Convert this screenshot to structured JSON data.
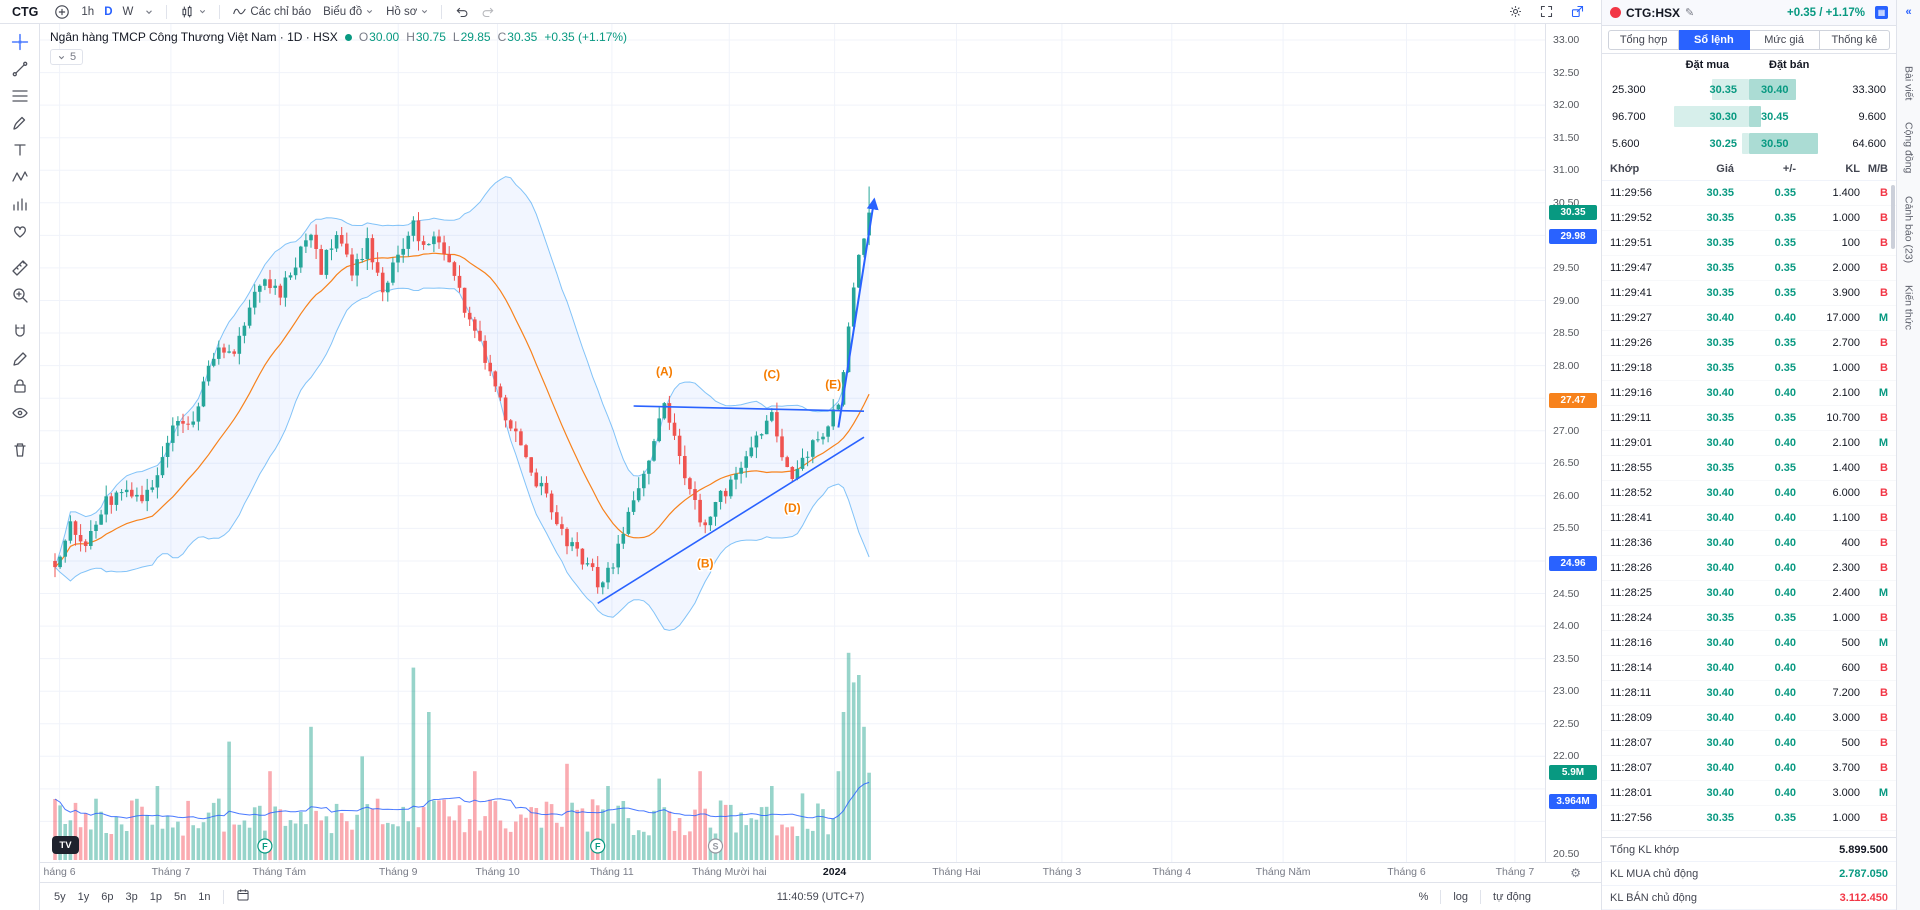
{
  "top_toolbar": {
    "symbol": "CTG",
    "intervals": [
      "1h",
      "D",
      "W"
    ],
    "active_interval": "D",
    "indicators_label": "Các chỉ báo",
    "chart_label": "Biểu đồ",
    "profile_label": "Hồ sơ"
  },
  "left_toolbar": {
    "active_tool": "crosshair",
    "tools": [
      "crosshair",
      "trend-line",
      "fib-retracement",
      "brush",
      "text",
      "xabcd-pattern",
      "forecast",
      "emoji",
      "ruler",
      "zoom-in",
      "magnet",
      "draw",
      "lock-all",
      "hide-all",
      "remove-all"
    ]
  },
  "legend": {
    "title": "Ngân hàng TMCP Công Thương Việt Nam · 1D · HSX",
    "ohlc_parts": [
      [
        "O",
        "30.00"
      ],
      [
        "H",
        "30.75"
      ],
      [
        "L",
        "29.85"
      ],
      [
        "C",
        "30.35"
      ]
    ],
    "change": "+0.35 (+1.17%)",
    "collapsed_count": "5"
  },
  "chart_data": {
    "type": "candlestick",
    "symbol": "CTG",
    "interval": "1D",
    "exchange": "HSX",
    "indicators": [
      "Bollinger Bands (20, 2)",
      "Volume",
      "Volume MA"
    ],
    "current": {
      "open": 30.0,
      "high": 30.75,
      "low": 29.85,
      "close": 30.35,
      "change": "+0.35",
      "change_pct": "+1.17%"
    },
    "y_axis": {
      "min": 20.5,
      "max": 33.0,
      "step": 0.5,
      "visible_ticks": [
        33,
        32.5,
        32,
        31.5,
        31,
        30.5,
        29.5,
        29,
        28.5,
        28,
        27,
        26.5,
        26,
        25.5,
        24.5,
        24,
        23.5,
        23,
        22.5,
        22,
        20.5
      ]
    },
    "x_axis": [
      {
        "label": "háng 6",
        "f": 0.013
      },
      {
        "label": "Tháng 7",
        "f": 0.087
      },
      {
        "label": "Tháng Tám",
        "f": 0.159
      },
      {
        "label": "Tháng 9",
        "f": 0.238
      },
      {
        "label": "Tháng 10",
        "f": 0.304
      },
      {
        "label": "Tháng 11",
        "f": 0.38
      },
      {
        "label": "Tháng Mười hai",
        "f": 0.458
      },
      {
        "label": "2024",
        "f": 0.528,
        "major": true
      },
      {
        "label": "Tháng Hai",
        "f": 0.609
      },
      {
        "label": "Tháng 3",
        "f": 0.679
      },
      {
        "label": "Tháng 4",
        "f": 0.752
      },
      {
        "label": "Tháng Năm",
        "f": 0.826
      },
      {
        "label": "Tháng 6",
        "f": 0.908
      },
      {
        "label": "Tháng 7",
        "f": 0.98
      }
    ],
    "price_badges": [
      {
        "text": "30.35",
        "price": 30.35,
        "color": "#089981"
      },
      {
        "text": "29.98",
        "price": 29.98,
        "color": "#2962ff"
      },
      {
        "text": "27.47",
        "price": 27.47,
        "color": "#f7821c"
      },
      {
        "text": "24.96",
        "price": 24.96,
        "color": "#2962ff"
      }
    ],
    "volume_badges": [
      {
        "text": "5.9M",
        "millions": 5.9,
        "color": "#089981"
      },
      {
        "text": "3.964M",
        "millions": 3.964,
        "color": "#2962ff"
      }
    ],
    "candle_count": 160,
    "price_path": [
      [
        0,
        25.0
      ],
      [
        3,
        25.5
      ],
      [
        6,
        25.2
      ],
      [
        10,
        25.9
      ],
      [
        14,
        26.1
      ],
      [
        17,
        25.9
      ],
      [
        20,
        26.4
      ],
      [
        23,
        27.1
      ],
      [
        26,
        27.0
      ],
      [
        29,
        27.7
      ],
      [
        32,
        28.3
      ],
      [
        35,
        28.1
      ],
      [
        38,
        29.0
      ],
      [
        41,
        29.4
      ],
      [
        44,
        29.1
      ],
      [
        47,
        29.6
      ],
      [
        50,
        30.0
      ],
      [
        52,
        29.5
      ],
      [
        55,
        30.1
      ],
      [
        58,
        29.4
      ],
      [
        61,
        29.9
      ],
      [
        64,
        29.2
      ],
      [
        67,
        29.7
      ],
      [
        70,
        30.2
      ],
      [
        72,
        29.8
      ],
      [
        75,
        30.0
      ],
      [
        78,
        29.4
      ],
      [
        80,
        28.9
      ],
      [
        83,
        28.3
      ],
      [
        86,
        27.6
      ],
      [
        89,
        27.1
      ],
      [
        92,
        26.5
      ],
      [
        95,
        26.1
      ],
      [
        98,
        25.6
      ],
      [
        101,
        25.2
      ],
      [
        104,
        24.9
      ],
      [
        107,
        24.6
      ],
      [
        109,
        25.0
      ],
      [
        112,
        25.7
      ],
      [
        115,
        26.4
      ],
      [
        118,
        27.1
      ],
      [
        119,
        27.4
      ],
      [
        121,
        26.9
      ],
      [
        124,
        26.1
      ],
      [
        127,
        25.5
      ],
      [
        130,
        26.0
      ],
      [
        133,
        26.3
      ],
      [
        136,
        26.7
      ],
      [
        139,
        27.1
      ],
      [
        140,
        27.3
      ],
      [
        142,
        26.7
      ],
      [
        144,
        26.3
      ],
      [
        147,
        26.7
      ],
      [
        150,
        27.0
      ],
      [
        152,
        27.25
      ],
      [
        153,
        27.4
      ],
      [
        154,
        27.9
      ],
      [
        155,
        28.6
      ],
      [
        156,
        29.2
      ],
      [
        157,
        29.7
      ],
      [
        158,
        29.95
      ],
      [
        159,
        30.35
      ]
    ],
    "volume_spikes": [
      [
        20,
        5
      ],
      [
        34,
        8
      ],
      [
        42,
        6
      ],
      [
        50,
        9
      ],
      [
        60,
        7
      ],
      [
        70,
        13
      ],
      [
        73,
        10
      ],
      [
        82,
        6
      ],
      [
        100,
        6.5
      ],
      [
        108,
        5
      ],
      [
        118,
        5.5
      ],
      [
        126,
        6
      ],
      [
        140,
        5
      ],
      [
        146,
        4.5
      ],
      [
        153,
        6
      ],
      [
        154,
        10
      ],
      [
        155,
        14
      ],
      [
        156,
        12
      ],
      [
        157,
        12.5
      ],
      [
        158,
        9
      ],
      [
        159,
        5.9
      ]
    ],
    "wave_labels": [
      {
        "text": "(A)",
        "i": 119,
        "price": 27.85
      },
      {
        "text": "(B)",
        "i": 127,
        "price": 24.9
      },
      {
        "text": "(C)",
        "i": 140,
        "price": 27.8
      },
      {
        "text": "(D)",
        "i": 144,
        "price": 25.75
      },
      {
        "text": "(E)",
        "i": 152,
        "price": 27.65
      }
    ],
    "trendlines": [
      {
        "i1": 113,
        "p1": 27.38,
        "i2": 158,
        "p2": 27.3
      },
      {
        "i1": 106,
        "p1": 24.35,
        "i2": 158,
        "p2": 26.9
      }
    ],
    "arrow": {
      "i1": 153,
      "p1": 27.05,
      "i2": 160,
      "p2": 30.55
    },
    "event_markers": [
      {
        "i": 41,
        "label": "F",
        "color": "#089981"
      },
      {
        "i": 106,
        "label": "F",
        "color": "#089981"
      },
      {
        "i": 129,
        "label": "S",
        "color": "#9598a1"
      }
    ]
  },
  "watermark": "TV",
  "bottom_toolbar": {
    "ranges": [
      "5y",
      "1y",
      "6p",
      "3p",
      "1p",
      "5n",
      "1n"
    ],
    "clock": "11:40:59 (UTC+7)",
    "scale_buttons": [
      "%",
      "log",
      "tự động"
    ]
  },
  "right_panel": {
    "symbol": "CTG:HSX",
    "change": "+0.35 / +1.17%",
    "tabs": [
      "Tổng hợp",
      "Sổ lệnh",
      "Mức giá",
      "Thống kê"
    ],
    "active_tab": "Sổ lệnh",
    "order_book": {
      "buy_header": "Đặt mua",
      "sell_header": "Đặt bán",
      "rows": [
        {
          "bid_vol": "25.300",
          "bid": "30.35",
          "ask": "30.40",
          "ask_vol": "33.300",
          "bid_bar": 0.5,
          "ask_bar": 0.62
        },
        {
          "bid_vol": "96.700",
          "bid": "30.30",
          "ask": "30.45",
          "ask_vol": "9.600",
          "bid_bar": 1.0,
          "ask_bar": 0.16
        },
        {
          "bid_vol": "5.600",
          "bid": "30.25",
          "ask": "30.50",
          "ask_vol": "64.600",
          "bid_bar": 0.1,
          "ask_bar": 0.92
        }
      ]
    },
    "trades": {
      "headers": [
        "Khớp",
        "Giá",
        "+/-",
        "KL",
        "M/B"
      ],
      "rows": [
        [
          "11:29:56",
          "30.35",
          "0.35",
          "1.400",
          "B"
        ],
        [
          "11:29:52",
          "30.35",
          "0.35",
          "1.000",
          "B"
        ],
        [
          "11:29:51",
          "30.35",
          "0.35",
          "100",
          "B"
        ],
        [
          "11:29:47",
          "30.35",
          "0.35",
          "2.000",
          "B"
        ],
        [
          "11:29:41",
          "30.35",
          "0.35",
          "3.900",
          "B"
        ],
        [
          "11:29:27",
          "30.40",
          "0.40",
          "17.000",
          "M"
        ],
        [
          "11:29:26",
          "30.35",
          "0.35",
          "2.700",
          "B"
        ],
        [
          "11:29:18",
          "30.35",
          "0.35",
          "1.000",
          "B"
        ],
        [
          "11:29:16",
          "30.40",
          "0.40",
          "2.100",
          "M"
        ],
        [
          "11:29:11",
          "30.35",
          "0.35",
          "10.700",
          "B"
        ],
        [
          "11:29:01",
          "30.40",
          "0.40",
          "2.100",
          "M"
        ],
        [
          "11:28:55",
          "30.35",
          "0.35",
          "1.400",
          "B"
        ],
        [
          "11:28:52",
          "30.40",
          "0.40",
          "6.000",
          "B"
        ],
        [
          "11:28:41",
          "30.40",
          "0.40",
          "1.100",
          "B"
        ],
        [
          "11:28:36",
          "30.40",
          "0.40",
          "400",
          "B"
        ],
        [
          "11:28:26",
          "30.40",
          "0.40",
          "2.300",
          "B"
        ],
        [
          "11:28:25",
          "30.40",
          "0.40",
          "2.400",
          "M"
        ],
        [
          "11:28:24",
          "30.35",
          "0.35",
          "1.000",
          "B"
        ],
        [
          "11:28:16",
          "30.40",
          "0.40",
          "500",
          "M"
        ],
        [
          "11:28:14",
          "30.40",
          "0.40",
          "600",
          "B"
        ],
        [
          "11:28:11",
          "30.40",
          "0.40",
          "7.200",
          "B"
        ],
        [
          "11:28:09",
          "30.40",
          "0.40",
          "3.000",
          "B"
        ],
        [
          "11:28:07",
          "30.40",
          "0.40",
          "500",
          "B"
        ],
        [
          "11:28:07",
          "30.40",
          "0.40",
          "3.700",
          "B"
        ],
        [
          "11:28:01",
          "30.40",
          "0.40",
          "3.000",
          "M"
        ],
        [
          "11:27:56",
          "30.35",
          "0.35",
          "1.000",
          "B"
        ]
      ]
    },
    "summary": [
      {
        "label": "Tổng KL khớp",
        "value": "5.899.500",
        "color": "#131722"
      },
      {
        "label": "KL MUA chủ động",
        "value": "2.787.050",
        "color": "#089981"
      },
      {
        "label": "KL BÁN chủ động",
        "value": "3.112.450",
        "color": "#f23645"
      }
    ]
  },
  "right_strip": {
    "tabs": [
      "Bài viết",
      "Cộng đồng",
      "Cảnh báo (23)",
      "Kiến thức"
    ]
  }
}
